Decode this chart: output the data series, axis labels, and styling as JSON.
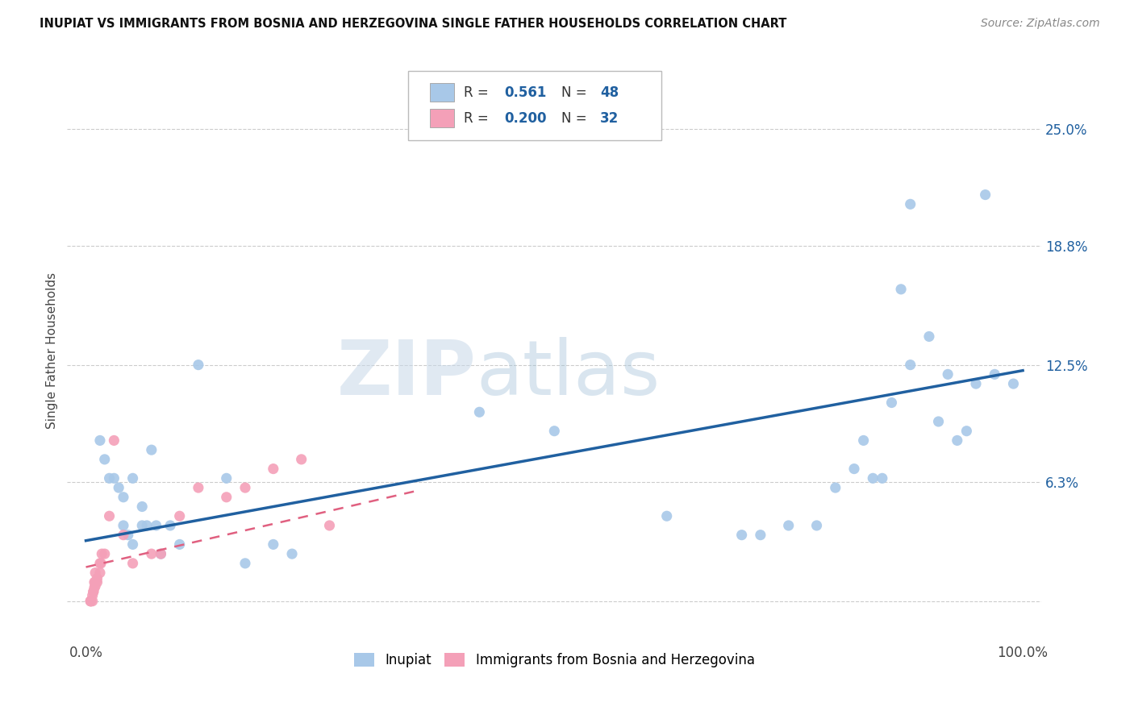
{
  "title": "INUPIAT VS IMMIGRANTS FROM BOSNIA AND HERZEGOVINA SINGLE FATHER HOUSEHOLDS CORRELATION CHART",
  "source": "Source: ZipAtlas.com",
  "ylabel": "Single Father Households",
  "xlabel": "",
  "legend_label1": "Inupiat",
  "legend_label2": "Immigrants from Bosnia and Herzegovina",
  "R1": 0.561,
  "N1": 48,
  "R2": 0.2,
  "N2": 32,
  "xlim": [
    -0.02,
    1.02
  ],
  "ylim": [
    -0.02,
    0.285
  ],
  "xticks": [
    0.0,
    0.25,
    0.5,
    0.75,
    1.0
  ],
  "xtick_labels": [
    "0.0%",
    "",
    "",
    "",
    "100.0%"
  ],
  "ytick_values": [
    0.0,
    0.063,
    0.125,
    0.188,
    0.25
  ],
  "ytick_labels": [
    "",
    "6.3%",
    "12.5%",
    "18.8%",
    "25.0%"
  ],
  "watermark_zip": "ZIP",
  "watermark_atlas": "atlas",
  "color_blue": "#a8c8e8",
  "color_pink": "#f4a0b8",
  "line_blue": "#2060a0",
  "line_pink": "#e06080",
  "blue_scatter_x": [
    0.015,
    0.02,
    0.025,
    0.03,
    0.035,
    0.04,
    0.04,
    0.045,
    0.05,
    0.05,
    0.06,
    0.06,
    0.065,
    0.07,
    0.075,
    0.08,
    0.09,
    0.1,
    0.12,
    0.15,
    0.17,
    0.2,
    0.22,
    0.42,
    0.5,
    0.62,
    0.7,
    0.72,
    0.75,
    0.78,
    0.8,
    0.82,
    0.83,
    0.84,
    0.85,
    0.86,
    0.87,
    0.88,
    0.88,
    0.9,
    0.91,
    0.92,
    0.93,
    0.94,
    0.95,
    0.96,
    0.97,
    0.99
  ],
  "blue_scatter_y": [
    0.085,
    0.075,
    0.065,
    0.065,
    0.06,
    0.055,
    0.04,
    0.035,
    0.065,
    0.03,
    0.05,
    0.04,
    0.04,
    0.08,
    0.04,
    0.025,
    0.04,
    0.03,
    0.125,
    0.065,
    0.02,
    0.03,
    0.025,
    0.1,
    0.09,
    0.045,
    0.035,
    0.035,
    0.04,
    0.04,
    0.06,
    0.07,
    0.085,
    0.065,
    0.065,
    0.105,
    0.165,
    0.21,
    0.125,
    0.14,
    0.095,
    0.12,
    0.085,
    0.09,
    0.115,
    0.215,
    0.12,
    0.115
  ],
  "pink_scatter_x": [
    0.005,
    0.005,
    0.005,
    0.007,
    0.007,
    0.008,
    0.008,
    0.009,
    0.009,
    0.01,
    0.01,
    0.01,
    0.012,
    0.012,
    0.015,
    0.015,
    0.016,
    0.017,
    0.02,
    0.025,
    0.03,
    0.04,
    0.05,
    0.07,
    0.08,
    0.1,
    0.12,
    0.15,
    0.17,
    0.2,
    0.23,
    0.26
  ],
  "pink_scatter_y": [
    0.0,
    0.0,
    0.0,
    0.0,
    0.003,
    0.005,
    0.005,
    0.007,
    0.01,
    0.008,
    0.01,
    0.015,
    0.01,
    0.012,
    0.015,
    0.02,
    0.02,
    0.025,
    0.025,
    0.045,
    0.085,
    0.035,
    0.02,
    0.025,
    0.025,
    0.045,
    0.06,
    0.055,
    0.06,
    0.07,
    0.075,
    0.04
  ],
  "blue_line_x0": 0.0,
  "blue_line_y0": 0.032,
  "blue_line_x1": 1.0,
  "blue_line_y1": 0.122,
  "pink_line_x0": 0.0,
  "pink_line_y0": 0.018,
  "pink_line_x1": 0.35,
  "pink_line_y1": 0.058
}
